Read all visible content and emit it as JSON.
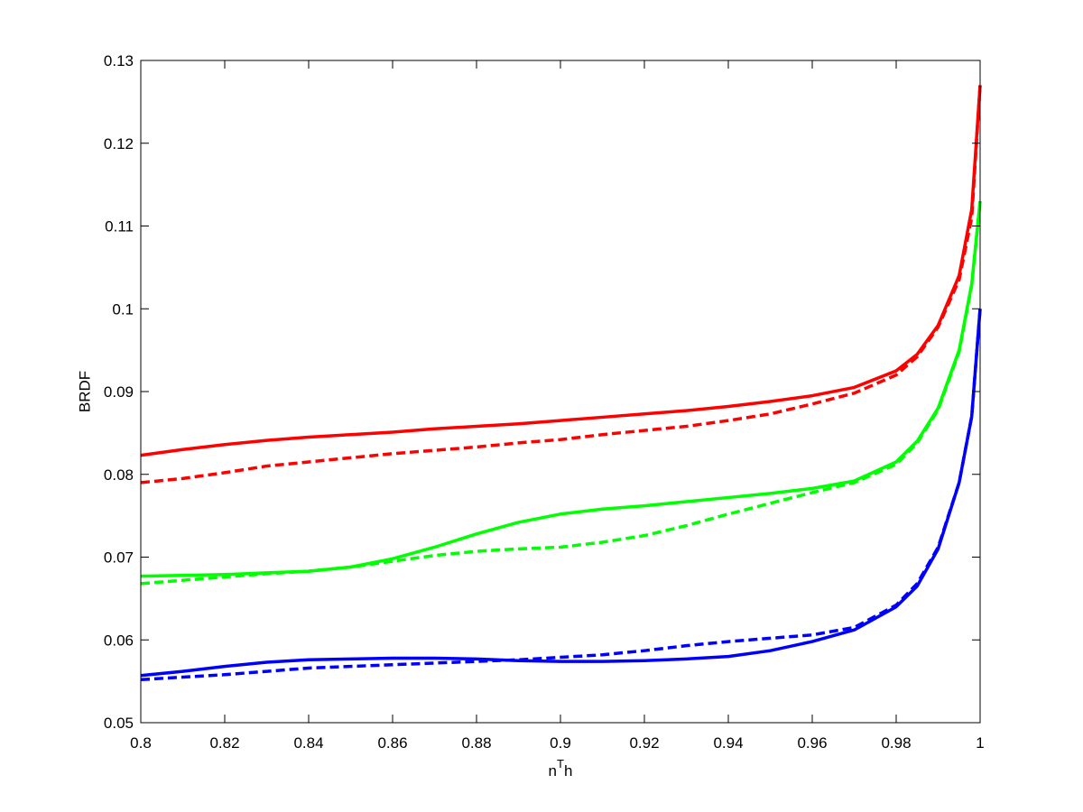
{
  "chart_data": {
    "type": "line",
    "y_label": "BRDF",
    "x_label_parts": [
      "n",
      "T",
      "h"
    ],
    "x": [
      0.8,
      0.81,
      0.82,
      0.83,
      0.84,
      0.85,
      0.86,
      0.87,
      0.88,
      0.89,
      0.9,
      0.91,
      0.92,
      0.93,
      0.94,
      0.95,
      0.96,
      0.97,
      0.98,
      0.985,
      0.99,
      0.995,
      0.998,
      1
    ],
    "series": [
      {
        "color": "#ff0000",
        "style": "solid",
        "values": [
          0.0823,
          0.083,
          0.0836,
          0.0841,
          0.0845,
          0.0848,
          0.0851,
          0.0855,
          0.0858,
          0.0861,
          0.0865,
          0.0869,
          0.0873,
          0.0877,
          0.0882,
          0.0888,
          0.0895,
          0.0905,
          0.0925,
          0.0945,
          0.098,
          0.104,
          0.112,
          0.127
        ]
      },
      {
        "color": "#ff0000",
        "style": "dashed",
        "values": [
          0.079,
          0.0795,
          0.0802,
          0.081,
          0.0815,
          0.082,
          0.0825,
          0.0829,
          0.0833,
          0.0838,
          0.0842,
          0.0848,
          0.0853,
          0.0858,
          0.0865,
          0.0873,
          0.0885,
          0.0898,
          0.092,
          0.0942,
          0.0978,
          0.1035,
          0.111,
          0.127
        ]
      },
      {
        "color": "#00ff00",
        "style": "solid",
        "values": [
          0.0677,
          0.0678,
          0.0679,
          0.0681,
          0.0683,
          0.0688,
          0.0698,
          0.0712,
          0.0728,
          0.0742,
          0.0752,
          0.0758,
          0.0762,
          0.0767,
          0.0772,
          0.0777,
          0.0783,
          0.0792,
          0.0815,
          0.084,
          0.088,
          0.095,
          0.103,
          0.113
        ]
      },
      {
        "color": "#00ff00",
        "style": "dashed",
        "values": [
          0.0668,
          0.0672,
          0.0676,
          0.068,
          0.0683,
          0.0688,
          0.0695,
          0.0702,
          0.0707,
          0.071,
          0.0712,
          0.0718,
          0.0726,
          0.0738,
          0.0752,
          0.0765,
          0.0778,
          0.079,
          0.0812,
          0.0838,
          0.0878,
          0.0948,
          0.1028,
          0.113
        ]
      },
      {
        "color": "#0000ff",
        "style": "solid",
        "values": [
          0.0557,
          0.0562,
          0.0568,
          0.0573,
          0.0576,
          0.0577,
          0.0578,
          0.0578,
          0.0577,
          0.0575,
          0.0574,
          0.0574,
          0.0575,
          0.0577,
          0.058,
          0.0587,
          0.0598,
          0.0612,
          0.064,
          0.0665,
          0.071,
          0.079,
          0.087,
          0.1
        ]
      },
      {
        "color": "#0000ff",
        "style": "dashed",
        "values": [
          0.0552,
          0.0555,
          0.0558,
          0.0562,
          0.0566,
          0.0568,
          0.057,
          0.0572,
          0.0574,
          0.0576,
          0.0579,
          0.0582,
          0.0587,
          0.0593,
          0.0598,
          0.0602,
          0.0606,
          0.0615,
          0.0642,
          0.0668,
          0.0712,
          0.079,
          0.087,
          0.1
        ]
      }
    ],
    "xlim": [
      0.8,
      1
    ],
    "xticks": [
      0.8,
      0.82,
      0.84,
      0.86,
      0.88,
      0.9,
      0.92,
      0.94,
      0.96,
      0.98,
      1
    ],
    "ylim": [
      0.05,
      0.13
    ],
    "yticks": [
      0.05,
      0.06,
      0.07,
      0.08,
      0.09,
      0.1,
      0.11,
      0.12,
      0.13
    ],
    "grid": false
  }
}
